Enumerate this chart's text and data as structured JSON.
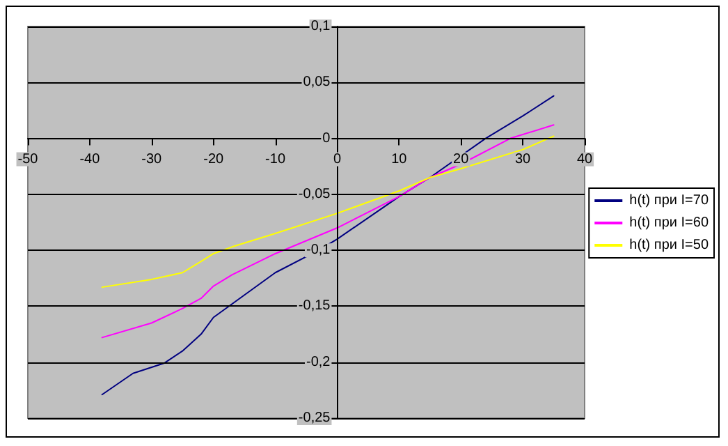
{
  "chart_data": {
    "type": "line",
    "xlim": [
      -50,
      40
    ],
    "xticks": [
      -50,
      -40,
      -30,
      -20,
      -10,
      0,
      10,
      20,
      30,
      40
    ],
    "ylim": [
      -0.25,
      0.1
    ],
    "yticks": [
      {
        "value": -0.25,
        "label": "-0,25"
      },
      {
        "value": -0.2,
        "label": "-0,2"
      },
      {
        "value": -0.15,
        "label": "-0,15"
      },
      {
        "value": -0.1,
        "label": "-0,1"
      },
      {
        "value": -0.05,
        "label": "-0,05"
      },
      {
        "value": 0,
        "label": "0"
      },
      {
        "value": 0.05,
        "label": "0,05"
      },
      {
        "value": 0.1,
        "label": "0,1"
      }
    ],
    "grid": "y",
    "legend": "right",
    "marker": "none",
    "line_style": "solid",
    "series": [
      {
        "name": "h(t) при I=70",
        "color": "#000080",
        "x": [
          -38,
          -33,
          -28,
          -25,
          -22,
          -20,
          -17,
          -10,
          -3,
          0,
          10,
          15,
          24,
          30,
          35
        ],
        "values": [
          -0.229,
          -0.21,
          -0.201,
          -0.19,
          -0.175,
          -0.16,
          -0.148,
          -0.12,
          -0.1,
          -0.09,
          -0.052,
          -0.035,
          0,
          0.02,
          0.038
        ]
      },
      {
        "name": "h(t) при I=60",
        "color": "#ff00ff",
        "x": [
          -38,
          -30,
          -25,
          -22,
          -20,
          -17,
          -10,
          0,
          10,
          15,
          20,
          28,
          35
        ],
        "values": [
          -0.178,
          -0.165,
          -0.152,
          -0.143,
          -0.132,
          -0.122,
          -0.103,
          -0.08,
          -0.052,
          -0.035,
          -0.023,
          0,
          0.012
        ]
      },
      {
        "name": "h(t) при I=50",
        "color": "#ffff00",
        "x": [
          -38,
          -30,
          -25,
          -22,
          -20,
          -17,
          -10,
          0,
          10,
          15,
          20,
          30,
          35
        ],
        "values": [
          -0.133,
          -0.126,
          -0.12,
          -0.11,
          -0.103,
          -0.097,
          -0.085,
          -0.067,
          -0.047,
          -0.035,
          -0.027,
          -0.01,
          0.002
        ]
      }
    ]
  }
}
